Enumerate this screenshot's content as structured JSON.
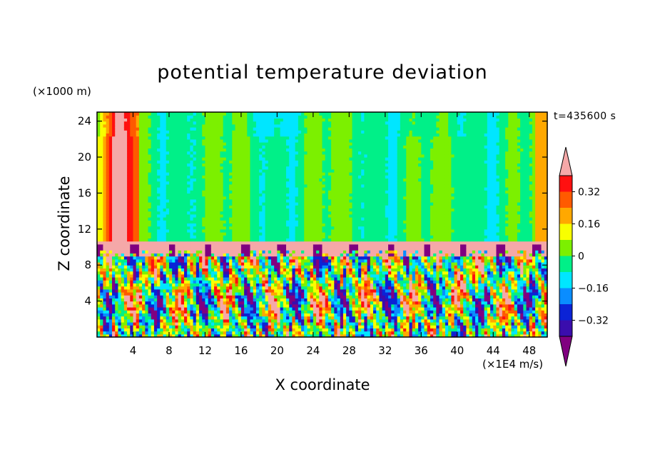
{
  "chart_data": {
    "type": "heatmap",
    "title": "potential temperature deviation",
    "xlabel": "X coordinate",
    "ylabel": "Z coordinate",
    "x_unit": "(×1E4 m/s)",
    "y_unit": "(×1000 m)",
    "time_label": "t=435600 s",
    "x_ticks": [
      4,
      8,
      12,
      16,
      20,
      24,
      28,
      32,
      36,
      40,
      44,
      48
    ],
    "y_ticks": [
      4,
      8,
      12,
      16,
      20,
      24
    ],
    "xlim": [
      0,
      50
    ],
    "ylim": [
      0,
      25
    ],
    "colorbar": {
      "labels": [
        "0.32",
        "0.16",
        "0",
        "−0.16",
        "−0.32"
      ],
      "label_values": [
        0.32,
        0.16,
        0,
        -0.16,
        -0.32
      ],
      "levels": [
        -0.4,
        -0.32,
        -0.24,
        -0.16,
        -0.08,
        0,
        0.08,
        0.16,
        0.24,
        0.32,
        0.4
      ],
      "colors": [
        "#800080",
        "#3a0dad",
        "#0b23d6",
        "#0a8dff",
        "#00e6ff",
        "#00f088",
        "#7cf000",
        "#f8ff00",
        "#ffa800",
        "#ff5a00",
        "#ff1010",
        "#f5a8a8"
      ]
    },
    "regions": {
      "upper_layer": {
        "z_range": [
          10.6,
          25
        ],
        "dominant_values": [
          0,
          0.08,
          -0.08
        ]
      },
      "inversion_band": {
        "z_range": [
          9,
          10.6
        ],
        "dominant_values": [
          0.4,
          -0.4
        ]
      },
      "lower_layer": {
        "z_range": [
          0,
          9
        ],
        "dominant_values": [
          -0.4,
          -0.24,
          0,
          0.16,
          0.32
        ]
      },
      "left_edge_warm_column": {
        "x_range": [
          0,
          4.5
        ],
        "dominant_values": [
          0.16,
          0.24,
          0.32
        ]
      }
    }
  }
}
